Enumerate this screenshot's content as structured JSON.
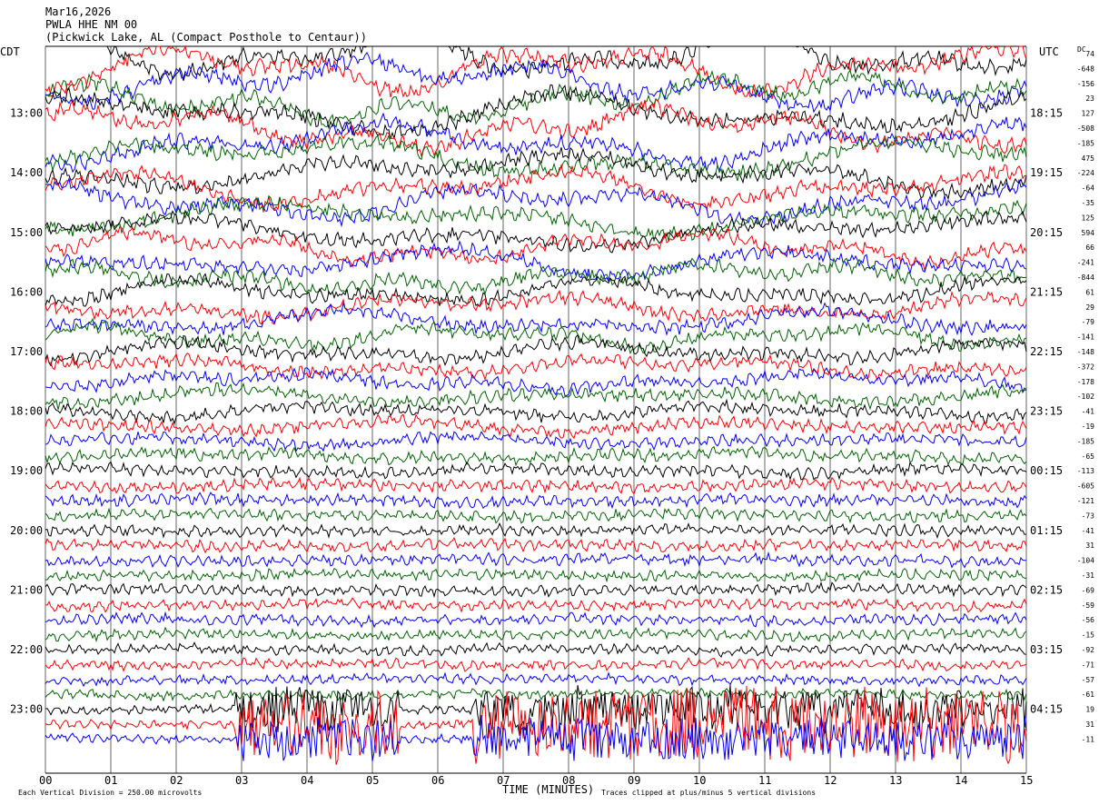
{
  "header": {
    "date": "Mar16,2026",
    "station": "PWLA HHE NM 00",
    "location": "(Pickwick Lake, AL (Compact Posthole to Centaur))"
  },
  "axis_labels": {
    "left_title": "CDT",
    "right_title": "UTC",
    "dc_label": "DC",
    "x_title": "TIME (MINUTES)"
  },
  "footer": {
    "scale_note": "Each Vertical Division = 250.00 microvolts",
    "clip_note": "Traces clipped at plus/minus 5 vertical divisions"
  },
  "colors": {
    "trace_cycle": [
      "#000000",
      "#ff0000",
      "#0000ff",
      "#006400"
    ],
    "grid": "#000000",
    "background": "#ffffff"
  },
  "chart_data": {
    "type": "line",
    "x_ticks": [
      "00",
      "01",
      "02",
      "03",
      "04",
      "05",
      "06",
      "07",
      "08",
      "09",
      "10",
      "11",
      "12",
      "13",
      "14",
      "15"
    ],
    "xlim": [
      0,
      15
    ],
    "left_time_labels": [
      "13:00",
      "14:00",
      "15:00",
      "16:00",
      "17:00",
      "18:00",
      "19:00",
      "20:00",
      "21:00",
      "22:00",
      "23:00"
    ],
    "right_time_labels": [
      "18:15",
      "19:15",
      "20:15",
      "21:15",
      "22:15",
      "23:15",
      "00:15",
      "01:15",
      "02:15",
      "03:15",
      "04:15"
    ],
    "dc_offsets": [
      "74",
      "-648",
      "-156",
      "23",
      "127",
      "-508",
      "-185",
      "475",
      "-224",
      "-64",
      "-35",
      "125",
      "594",
      "66",
      "-241",
      "-844",
      "61",
      "29",
      "-79",
      "-141",
      "-148",
      "-372",
      "-178",
      "-102",
      "-41",
      "-19",
      "-185",
      "-65",
      "-113",
      "-605",
      "-121",
      "-73",
      "-41",
      "31",
      "-104",
      "-31",
      "-69",
      "-59",
      "-56",
      "-15",
      "-92",
      "-71",
      "-57",
      "-61",
      "19",
      "31",
      "-11"
    ],
    "trace_count": 47,
    "traces_per_hour": 4,
    "clip_divisions": 5
  }
}
